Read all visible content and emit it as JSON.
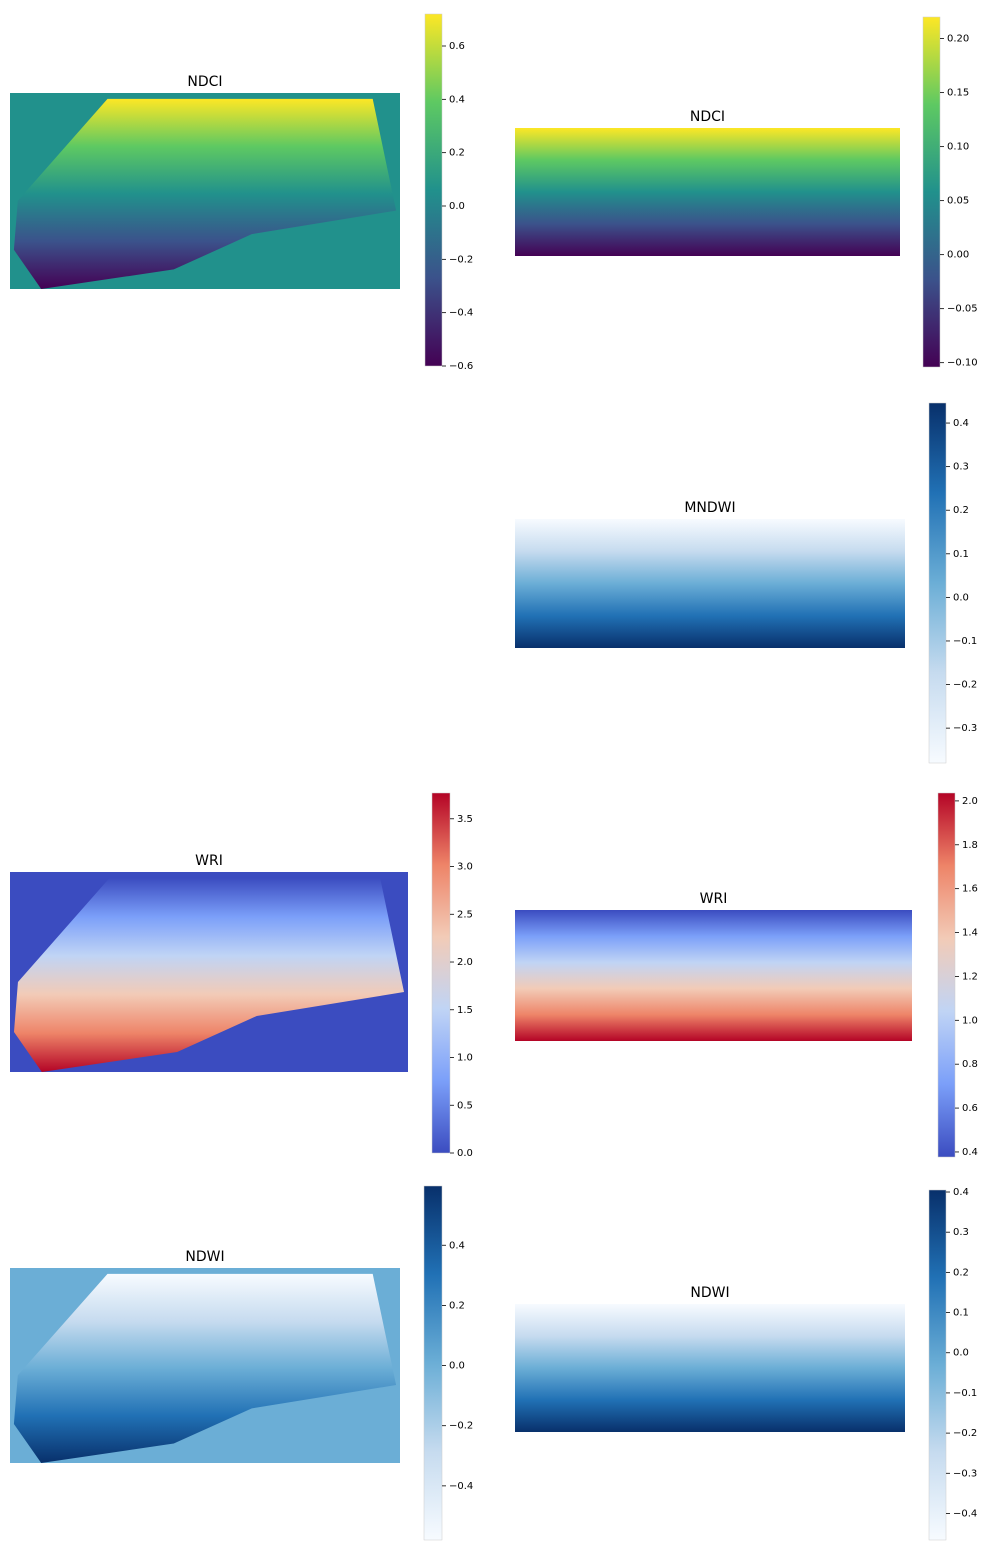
{
  "chart_data": [
    {
      "type": "heatmap",
      "title": "NDCI",
      "colormap": [
        "#440154",
        "#3b528b",
        "#21918c",
        "#5ec962",
        "#fde725"
      ],
      "ylim": [
        -0.6,
        0.72
      ],
      "yticks": [
        0.6,
        0.4,
        0.2,
        {
          "value": 0,
          "label": "0.0"
        },
        {
          "value": -0.2,
          "label": "−0.2"
        },
        {
          "value": -0.4,
          "label": "−0.4"
        },
        {
          "value": -0.6,
          "label": "−0.6"
        }
      ]
    },
    {
      "type": "heatmap",
      "title": "NDCI",
      "colormap": [
        "#440154",
        "#3b528b",
        "#21918c",
        "#5ec962",
        "#fde725"
      ],
      "ylim": [
        -0.104,
        0.22
      ],
      "yticks": [
        {
          "value": 0.2,
          "label": "0.20"
        },
        0.15,
        {
          "value": 0.1,
          "label": "0.10"
        },
        0.05,
        {
          "value": 0,
          "label": "0.00"
        },
        {
          "value": -0.05,
          "label": "−0.05"
        },
        {
          "value": -0.1,
          "label": "−0.10"
        }
      ]
    },
    {
      "type": "heatmap",
      "title": "MNDWI",
      "colormap": [
        "#f7fbff",
        "#c6dbef",
        "#6baed6",
        "#2171b5",
        "#08306b"
      ],
      "ylim": [
        -0.38,
        0.446
      ],
      "yticks": [
        0.4,
        0.3,
        0.2,
        0.1,
        {
          "value": 0,
          "label": "0.0"
        },
        {
          "value": -0.1,
          "label": "−0.1"
        },
        {
          "value": -0.2,
          "label": "−0.2"
        },
        {
          "value": -0.3,
          "label": "−0.3"
        }
      ]
    },
    {
      "type": "heatmap",
      "title": "WRI",
      "colormap": [
        "#3b4cc0",
        "#7b9ff9",
        "#c0d4f5",
        "#f2cbb7",
        "#ee8468",
        "#b40426"
      ],
      "ylim": [
        0,
        3.77
      ],
      "yticks": [
        3.5,
        {
          "value": 3,
          "label": "3.0"
        },
        2.5,
        {
          "value": 2,
          "label": "2.0"
        },
        1.5,
        {
          "value": 1,
          "label": "1.0"
        },
        0.5,
        {
          "value": 0,
          "label": "0.0"
        }
      ]
    },
    {
      "type": "heatmap",
      "title": "WRI",
      "colormap": [
        "#3b4cc0",
        "#7b9ff9",
        "#c0d4f5",
        "#f2cbb7",
        "#ee8468",
        "#b40426"
      ],
      "ylim": [
        0.377,
        2.036
      ],
      "yticks": [
        {
          "value": 2,
          "label": "2.0"
        },
        1.8,
        1.6,
        1.4,
        1.2,
        {
          "value": 1,
          "label": "1.0"
        },
        0.8,
        0.6,
        0.4
      ]
    },
    {
      "type": "heatmap",
      "title": "NDWI",
      "colormap": [
        "#f7fbff",
        "#c6dbef",
        "#6baed6",
        "#2171b5",
        "#08306b"
      ],
      "ylim": [
        -0.58,
        0.597
      ],
      "yticks": [
        0.4,
        0.2,
        {
          "value": 0,
          "label": "0.0"
        },
        {
          "value": -0.2,
          "label": "−0.2"
        },
        {
          "value": -0.4,
          "label": "−0.4"
        }
      ]
    },
    {
      "type": "heatmap",
      "title": "NDWI",
      "colormap": [
        "#f7fbff",
        "#c6dbef",
        "#6baed6",
        "#2171b5",
        "#08306b"
      ],
      "ylim": [
        -0.466,
        0.405
      ],
      "yticks": [
        0.4,
        0.3,
        0.2,
        0.1,
        {
          "value": 0,
          "label": "0.0"
        },
        {
          "value": -0.1,
          "label": "−0.1"
        },
        {
          "value": -0.2,
          "label": "−0.2"
        },
        {
          "value": -0.3,
          "label": "−0.3"
        },
        {
          "value": -0.4,
          "label": "−0.4"
        }
      ]
    }
  ]
}
